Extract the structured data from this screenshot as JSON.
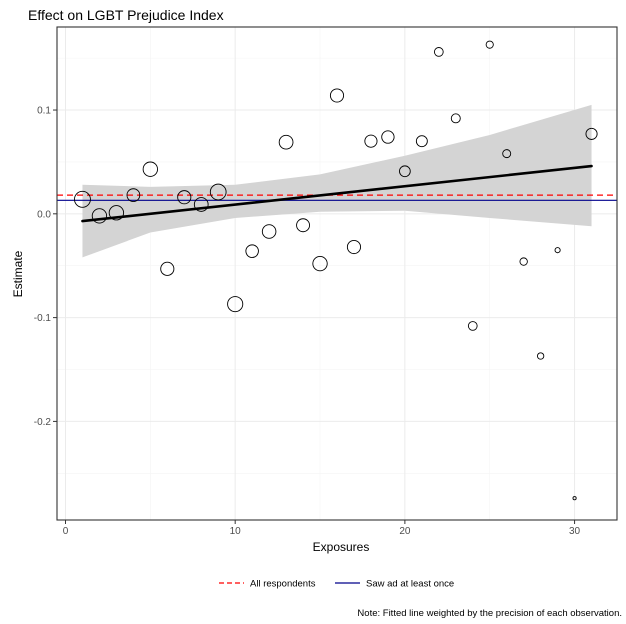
{
  "chart_data": {
    "type": "scatter",
    "title": "Effect on LGBT Prejudice Index",
    "xlabel": "Exposures",
    "ylabel": "Estimate",
    "xlim": [
      -0.5,
      32.5
    ],
    "ylim": [
      -0.295,
      0.18
    ],
    "x_ticks": [
      0,
      10,
      20,
      30
    ],
    "x_tick_labels": [
      "0",
      "10",
      "20",
      "30"
    ],
    "y_ticks": [
      -0.2,
      -0.1,
      0.0,
      0.1
    ],
    "y_tick_labels": [
      "-0.2",
      "-0.1",
      "0.0",
      "0.1"
    ],
    "grid": true,
    "points": [
      {
        "x": 1,
        "y": 0.014,
        "precision": 8.0
      },
      {
        "x": 2,
        "y": -0.002,
        "precision": 7.2
      },
      {
        "x": 3,
        "y": 0.001,
        "precision": 7.2
      },
      {
        "x": 4,
        "y": 0.018,
        "precision": 6.4
      },
      {
        "x": 5,
        "y": 0.043,
        "precision": 7.2
      },
      {
        "x": 6,
        "y": -0.053,
        "precision": 6.6
      },
      {
        "x": 7,
        "y": 0.016,
        "precision": 6.6
      },
      {
        "x": 8,
        "y": 0.009,
        "precision": 6.9
      },
      {
        "x": 9,
        "y": 0.021,
        "precision": 7.9
      },
      {
        "x": 10,
        "y": -0.087,
        "precision": 7.6
      },
      {
        "x": 11,
        "y": -0.036,
        "precision": 6.3
      },
      {
        "x": 12,
        "y": -0.017,
        "precision": 6.8
      },
      {
        "x": 13,
        "y": 0.069,
        "precision": 6.9
      },
      {
        "x": 14,
        "y": -0.011,
        "precision": 6.5
      },
      {
        "x": 15,
        "y": -0.048,
        "precision": 7.2
      },
      {
        "x": 16,
        "y": 0.114,
        "precision": 6.6
      },
      {
        "x": 17,
        "y": -0.032,
        "precision": 6.6
      },
      {
        "x": 18,
        "y": 0.07,
        "precision": 6.1
      },
      {
        "x": 19,
        "y": 0.074,
        "precision": 6.2
      },
      {
        "x": 20,
        "y": 0.041,
        "precision": 5.4
      },
      {
        "x": 21,
        "y": 0.07,
        "precision": 5.5
      },
      {
        "x": 22,
        "y": 0.156,
        "precision": 4.4
      },
      {
        "x": 23,
        "y": 0.092,
        "precision": 4.5
      },
      {
        "x": 24,
        "y": -0.108,
        "precision": 4.4
      },
      {
        "x": 25,
        "y": 0.163,
        "precision": 3.6
      },
      {
        "x": 26,
        "y": 0.058,
        "precision": 4.0
      },
      {
        "x": 27,
        "y": -0.046,
        "precision": 3.7
      },
      {
        "x": 28,
        "y": -0.137,
        "precision": 3.2
      },
      {
        "x": 29,
        "y": -0.035,
        "precision": 2.6
      },
      {
        "x": 30,
        "y": -0.274,
        "precision": 1.6
      },
      {
        "x": 31,
        "y": 0.077,
        "precision": 5.6
      }
    ],
    "fit": {
      "x": [
        1,
        31
      ],
      "y": [
        -0.007,
        0.046
      ],
      "band_x": [
        1,
        5,
        10,
        15,
        20,
        25,
        31
      ],
      "band_lower": [
        -0.042,
        -0.018,
        -0.004,
        0.002,
        0.003,
        -0.004,
        -0.012
      ],
      "band_upper": [
        0.028,
        0.026,
        0.028,
        0.038,
        0.056,
        0.076,
        0.105
      ]
    },
    "reference_lines": [
      {
        "name": "All respondents",
        "y": 0.018,
        "color": "#ff0000",
        "dash": "dashed"
      },
      {
        "name": "Saw ad at least once",
        "y": 0.013,
        "color": "#00008b",
        "dash": "solid"
      }
    ],
    "legend_position": "bottom",
    "legend": [
      "All respondents",
      "Saw ad at least once"
    ],
    "note": "Note: Fitted line weighted by the precision of each observation.",
    "colors": {
      "band": "#d4d4d4",
      "fit_line": "#000000",
      "points_stroke": "#000000",
      "grid": "#ebebeb",
      "panel_border": "#333333"
    }
  }
}
